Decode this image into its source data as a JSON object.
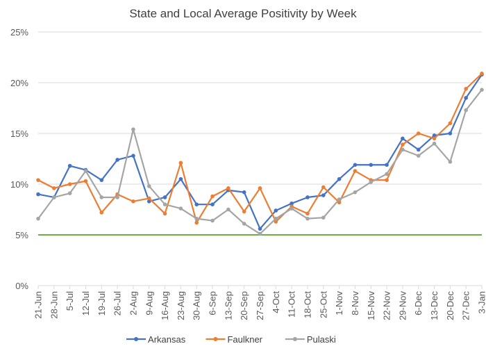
{
  "chart_data": {
    "type": "line",
    "title": "State and Local Average Positivity by Week",
    "xlabel": "",
    "ylabel": "",
    "ylim": [
      0,
      25
    ],
    "yticks": [
      0,
      5,
      10,
      15,
      20,
      25
    ],
    "ytick_labels": [
      "0%",
      "5%",
      "10%",
      "15%",
      "20%",
      "25%"
    ],
    "grid": true,
    "legend_position": "bottom",
    "categories": [
      "21-Jun",
      "28-Jun",
      "5-Jul",
      "12-Jul",
      "19-Jul",
      "26-Jul",
      "2-Aug",
      "9-Aug",
      "16-Aug",
      "23-Aug",
      "30-Aug",
      "6-Sep",
      "13-Sep",
      "20-Sep",
      "27-Sep",
      "4-Oct",
      "11-Oct",
      "18-Oct",
      "25-Oct",
      "1-Nov",
      "8-Nov",
      "15-Nov",
      "22-Nov",
      "29-Nov",
      "6-Dec",
      "13-Dec",
      "20-Dec",
      "27-Dec",
      "3-Jan"
    ],
    "series": [
      {
        "name": "Arkansas",
        "color": "#4472c4",
        "values": [
          9.0,
          8.7,
          11.8,
          11.4,
          10.4,
          12.4,
          12.8,
          8.3,
          8.7,
          10.5,
          8.0,
          8.0,
          9.4,
          9.2,
          5.6,
          7.4,
          8.1,
          8.7,
          8.9,
          10.5,
          11.9,
          11.9,
          11.9,
          14.5,
          13.4,
          14.8,
          15.0,
          18.5,
          20.8
        ]
      },
      {
        "name": "Faulkner",
        "color": "#ed7d31",
        "values": [
          10.4,
          9.6,
          10.0,
          10.3,
          7.2,
          9.0,
          8.3,
          8.6,
          7.1,
          12.1,
          6.2,
          8.8,
          9.6,
          7.3,
          9.6,
          6.3,
          7.8,
          7.1,
          9.7,
          8.2,
          11.3,
          10.4,
          10.4,
          13.9,
          15.0,
          14.5,
          16.0,
          19.4,
          20.9
        ]
      },
      {
        "name": "Pulaski",
        "color": "#a5a5a5",
        "values": [
          6.6,
          8.7,
          9.1,
          11.3,
          8.7,
          8.7,
          15.4,
          9.8,
          8.0,
          7.6,
          6.6,
          6.4,
          7.5,
          6.1,
          5.1,
          6.6,
          7.6,
          6.6,
          6.7,
          8.5,
          9.2,
          10.2,
          11.0,
          13.4,
          12.8,
          14.0,
          12.2,
          17.3,
          19.3
        ]
      }
    ],
    "reference_line": {
      "value": 5,
      "color": "#70ad47"
    }
  }
}
